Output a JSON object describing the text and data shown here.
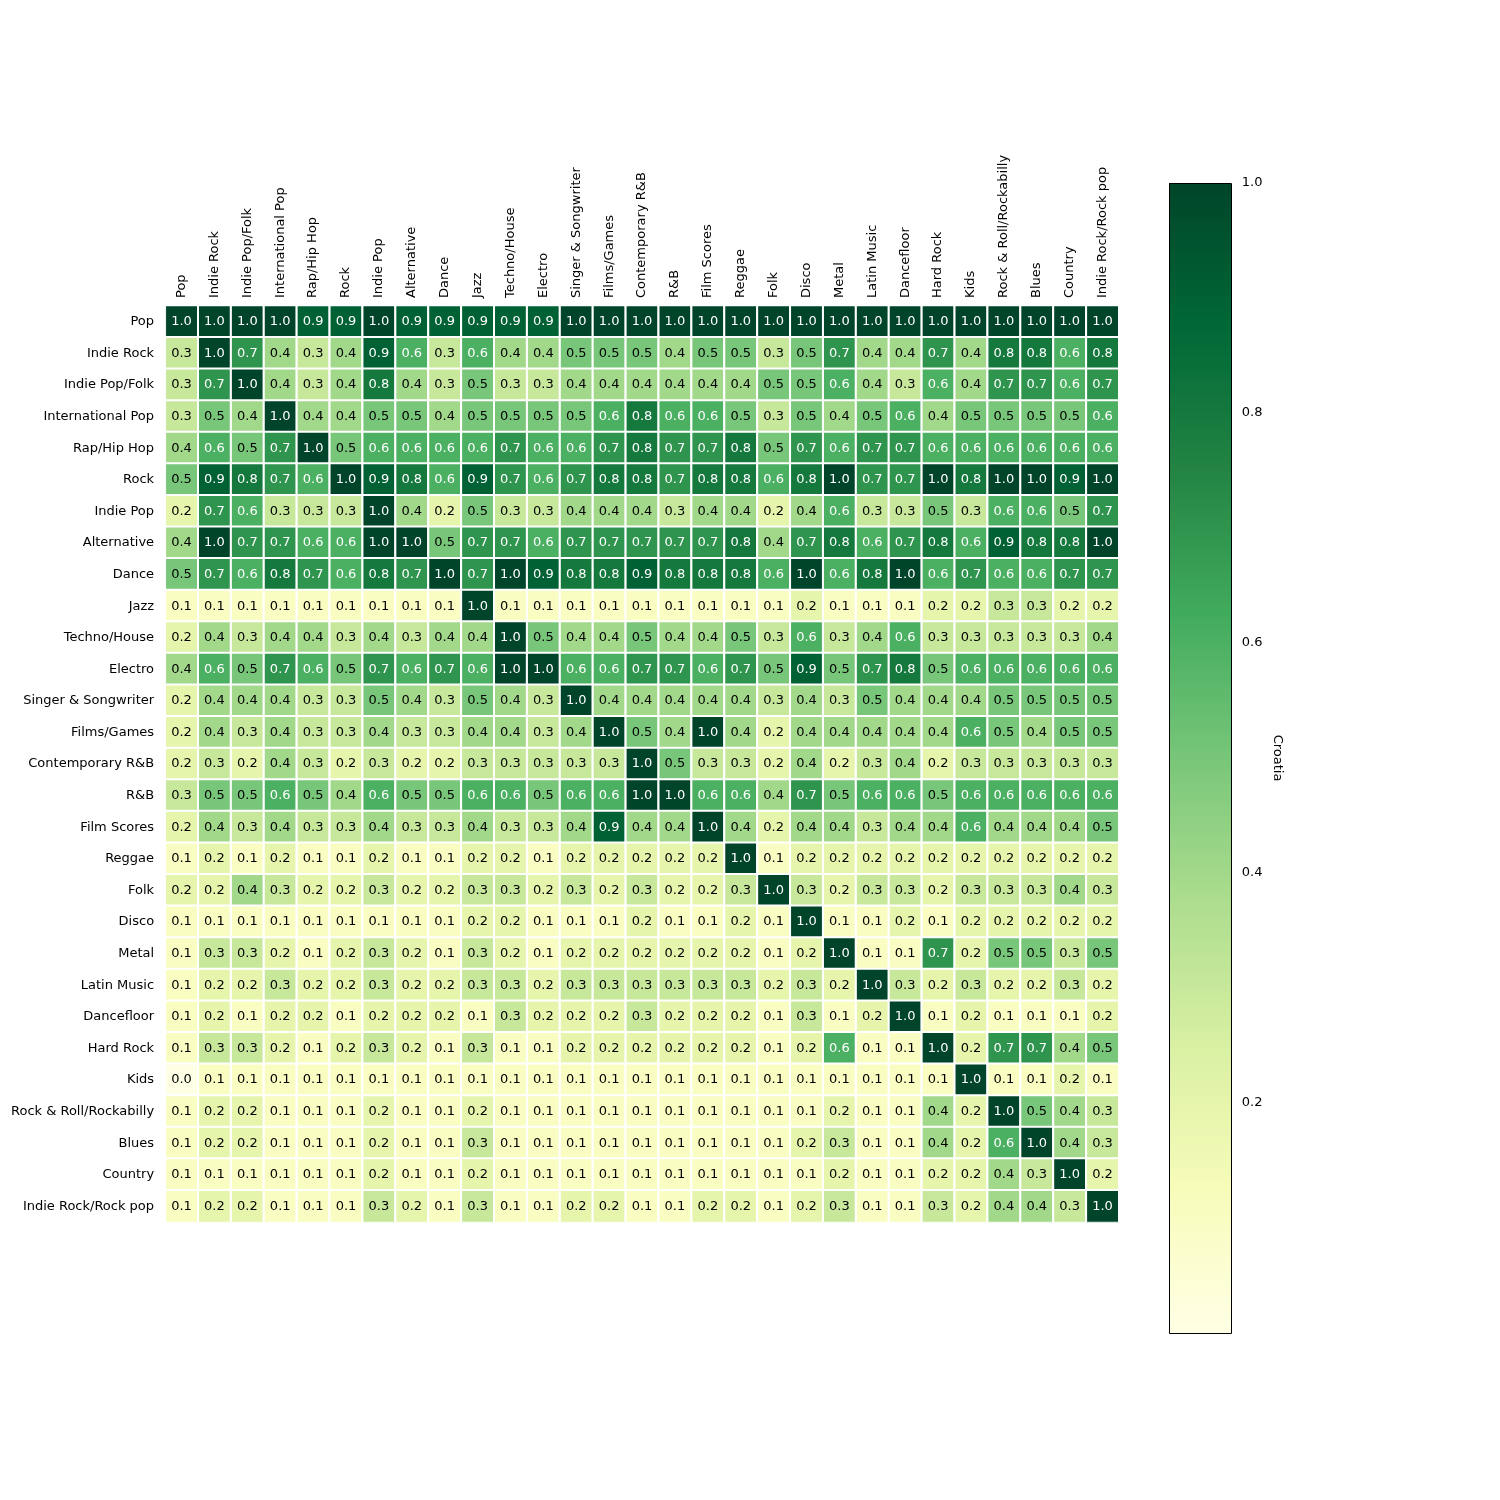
{
  "chart_data": {
    "type": "heatmap",
    "clabel": "Croatia",
    "clim": [
      0.0,
      1.0
    ],
    "cticks": [
      0.2,
      0.4,
      0.6,
      0.8,
      {
        "value": 1,
        "label": "1.0"
      }
    ],
    "data_labels": true,
    "categories": [
      "Pop",
      "Indie Rock",
      "Indie Pop/Folk",
      "International Pop",
      "Rap/Hip Hop",
      "Rock",
      "Indie Pop",
      "Alternative",
      "Dance",
      "Jazz",
      "Techno/House",
      "Electro",
      "Singer & Songwriter",
      "Films/Games",
      "Contemporary R&B",
      "R&B",
      "Film Scores",
      "Reggae",
      "Folk",
      "Disco",
      "Metal",
      "Latin Music",
      "Dancefloor",
      "Hard Rock",
      "Kids",
      "Rock & Roll/Rockabilly",
      "Blues",
      "Country",
      "Indie Rock/Rock pop"
    ],
    "y_categories": [
      "Pop",
      "Indie Rock",
      "Indie Pop/Folk",
      "International Pop",
      "Rap/Hip Hop",
      "Rock",
      "Indie Pop",
      "Alternative",
      "Dance",
      "Jazz",
      "Techno/House",
      "Electro",
      "Singer & Songwriter",
      "Films/Games",
      "Contemporary R&B",
      "R&B",
      "Film Scores",
      "Reggae",
      "Folk",
      "Disco",
      "Metal",
      "Latin Music",
      "Dancefloor",
      "Hard Rock",
      "Kids",
      "Rock & Roll/Rockabilly",
      "Blues",
      "Country",
      "Indie Rock/Rock pop"
    ],
    "cells": [
      [
        1.0,
        1.0,
        1.0,
        1.0,
        0.9,
        0.9,
        1.0,
        0.9,
        0.9,
        0.9,
        0.9,
        0.9,
        1.0,
        1.0,
        1.0,
        1.0,
        1.0,
        1.0,
        1.0,
        1.0,
        1.0,
        1.0,
        1.0,
        1.0,
        1.0,
        1.0,
        1.0,
        1.0,
        1.0
      ],
      [
        0.3,
        1.0,
        0.7,
        0.4,
        0.3,
        0.4,
        0.9,
        0.6,
        0.3,
        0.6,
        0.4,
        0.4,
        0.5,
        0.5,
        0.5,
        0.4,
        0.5,
        0.5,
        0.3,
        0.5,
        0.7,
        0.4,
        0.4,
        0.7,
        0.4,
        0.8,
        0.8,
        0.6,
        0.8
      ],
      [
        0.3,
        0.7,
        1.0,
        0.4,
        0.3,
        0.4,
        0.8,
        0.4,
        0.3,
        0.5,
        0.3,
        0.3,
        0.4,
        0.4,
        0.4,
        0.4,
        0.4,
        0.4,
        0.5,
        0.5,
        0.6,
        0.4,
        0.3,
        0.6,
        0.4,
        0.7,
        0.7,
        0.6,
        0.7
      ],
      [
        0.3,
        0.5,
        0.4,
        1.0,
        0.4,
        0.4,
        0.5,
        0.5,
        0.4,
        0.5,
        0.5,
        0.5,
        0.5,
        0.6,
        0.8,
        0.6,
        0.6,
        0.5,
        0.3,
        0.5,
        0.4,
        0.5,
        0.6,
        0.4,
        0.5,
        0.5,
        0.5,
        0.5,
        0.6
      ],
      [
        0.4,
        0.6,
        0.5,
        0.7,
        1.0,
        0.5,
        0.6,
        0.6,
        0.6,
        0.6,
        0.7,
        0.6,
        0.6,
        0.7,
        0.8,
        0.7,
        0.7,
        0.8,
        0.5,
        0.7,
        0.6,
        0.7,
        0.7,
        0.6,
        0.6,
        0.6,
        0.6,
        0.6,
        0.6
      ],
      [
        0.5,
        0.9,
        0.8,
        0.7,
        0.6,
        1.0,
        0.9,
        0.8,
        0.6,
        0.9,
        0.7,
        0.6,
        0.7,
        0.8,
        0.8,
        0.7,
        0.8,
        0.8,
        0.6,
        0.8,
        1.0,
        0.7,
        0.7,
        1.0,
        0.8,
        1.0,
        1.0,
        0.9,
        1.0
      ],
      [
        0.2,
        0.7,
        0.6,
        0.3,
        0.3,
        0.3,
        1.0,
        0.4,
        0.2,
        0.5,
        0.3,
        0.3,
        0.4,
        0.4,
        0.4,
        0.3,
        0.4,
        0.4,
        0.2,
        0.4,
        0.6,
        0.3,
        0.3,
        0.5,
        0.3,
        0.6,
        0.6,
        0.5,
        0.7
      ],
      [
        0.4,
        1.0,
        0.7,
        0.7,
        0.6,
        0.6,
        1.0,
        1.0,
        0.5,
        0.7,
        0.7,
        0.6,
        0.7,
        0.7,
        0.7,
        0.7,
        0.7,
        0.8,
        0.4,
        0.7,
        0.8,
        0.6,
        0.7,
        0.8,
        0.6,
        0.9,
        0.8,
        0.8,
        1.0
      ],
      [
        0.5,
        0.7,
        0.6,
        0.8,
        0.7,
        0.6,
        0.8,
        0.7,
        1.0,
        0.7,
        1.0,
        0.9,
        0.8,
        0.8,
        0.9,
        0.8,
        0.8,
        0.8,
        0.6,
        1.0,
        0.6,
        0.8,
        1.0,
        0.6,
        0.7,
        0.6,
        0.6,
        0.7,
        0.7
      ],
      [
        0.1,
        0.1,
        0.1,
        0.1,
        0.1,
        0.1,
        0.1,
        0.1,
        0.1,
        1.0,
        0.1,
        0.1,
        0.1,
        0.1,
        0.1,
        0.1,
        0.1,
        0.1,
        0.1,
        0.2,
        0.1,
        0.1,
        0.1,
        0.2,
        0.2,
        0.3,
        0.3,
        0.2,
        0.2
      ],
      [
        0.2,
        0.4,
        0.3,
        0.4,
        0.4,
        0.3,
        0.4,
        0.3,
        0.4,
        0.4,
        1.0,
        0.5,
        0.4,
        0.4,
        0.5,
        0.4,
        0.4,
        0.5,
        0.3,
        0.6,
        0.3,
        0.4,
        0.6,
        0.3,
        0.3,
        0.3,
        0.3,
        0.3,
        0.4
      ],
      [
        0.4,
        0.6,
        0.5,
        0.7,
        0.6,
        0.5,
        0.7,
        0.6,
        0.7,
        0.6,
        1.0,
        1.0,
        0.6,
        0.6,
        0.7,
        0.7,
        0.6,
        0.7,
        0.5,
        0.9,
        0.5,
        0.7,
        0.8,
        0.5,
        0.6,
        0.6,
        0.6,
        0.6,
        0.6
      ],
      [
        0.2,
        0.4,
        0.4,
        0.4,
        0.3,
        0.3,
        0.5,
        0.4,
        0.3,
        0.5,
        0.4,
        0.3,
        1.0,
        0.4,
        0.4,
        0.4,
        0.4,
        0.4,
        0.3,
        0.4,
        0.3,
        0.5,
        0.4,
        0.4,
        0.4,
        0.5,
        0.5,
        0.5,
        0.5
      ],
      [
        0.2,
        0.4,
        0.3,
        0.4,
        0.3,
        0.3,
        0.4,
        0.3,
        0.3,
        0.4,
        0.4,
        0.3,
        0.4,
        1.0,
        0.5,
        0.4,
        1.0,
        0.4,
        0.2,
        0.4,
        0.4,
        0.4,
        0.4,
        0.4,
        0.6,
        0.5,
        0.4,
        0.5,
        0.5
      ],
      [
        0.2,
        0.3,
        0.2,
        0.4,
        0.3,
        0.2,
        0.3,
        0.2,
        0.2,
        0.3,
        0.3,
        0.3,
        0.3,
        0.3,
        1.0,
        0.5,
        0.3,
        0.3,
        0.2,
        0.4,
        0.2,
        0.3,
        0.4,
        0.2,
        0.3,
        0.3,
        0.3,
        0.3,
        0.3
      ],
      [
        0.3,
        0.5,
        0.5,
        0.6,
        0.5,
        0.4,
        0.6,
        0.5,
        0.5,
        0.6,
        0.6,
        0.5,
        0.6,
        0.6,
        1.0,
        1.0,
        0.6,
        0.6,
        0.4,
        0.7,
        0.5,
        0.6,
        0.6,
        0.5,
        0.6,
        0.6,
        0.6,
        0.6,
        0.6
      ],
      [
        0.2,
        0.4,
        0.3,
        0.4,
        0.3,
        0.3,
        0.4,
        0.3,
        0.3,
        0.4,
        0.3,
        0.3,
        0.4,
        0.9,
        0.4,
        0.4,
        1.0,
        0.4,
        0.2,
        0.4,
        0.4,
        0.3,
        0.4,
        0.4,
        0.6,
        0.4,
        0.4,
        0.4,
        0.5
      ],
      [
        0.1,
        0.2,
        0.1,
        0.2,
        0.1,
        0.1,
        0.2,
        0.1,
        0.1,
        0.2,
        0.2,
        0.1,
        0.2,
        0.2,
        0.2,
        0.2,
        0.2,
        1.0,
        0.1,
        0.2,
        0.2,
        0.2,
        0.2,
        0.2,
        0.2,
        0.2,
        0.2,
        0.2,
        0.2
      ],
      [
        0.2,
        0.2,
        0.4,
        0.3,
        0.2,
        0.2,
        0.3,
        0.2,
        0.2,
        0.3,
        0.3,
        0.2,
        0.3,
        0.2,
        0.3,
        0.2,
        0.2,
        0.3,
        1.0,
        0.3,
        0.2,
        0.3,
        0.3,
        0.2,
        0.3,
        0.3,
        0.3,
        0.4,
        0.3
      ],
      [
        0.1,
        0.1,
        0.1,
        0.1,
        0.1,
        0.1,
        0.1,
        0.1,
        0.1,
        0.2,
        0.2,
        0.1,
        0.1,
        0.1,
        0.2,
        0.1,
        0.1,
        0.2,
        0.1,
        1.0,
        0.1,
        0.1,
        0.2,
        0.1,
        0.2,
        0.2,
        0.2,
        0.2,
        0.2
      ],
      [
        0.1,
        0.3,
        0.3,
        0.2,
        0.1,
        0.2,
        0.3,
        0.2,
        0.1,
        0.3,
        0.2,
        0.1,
        0.2,
        0.2,
        0.2,
        0.2,
        0.2,
        0.2,
        0.1,
        0.2,
        1.0,
        0.1,
        0.1,
        0.7,
        0.2,
        0.5,
        0.5,
        0.3,
        0.5
      ],
      [
        0.1,
        0.2,
        0.2,
        0.3,
        0.2,
        0.2,
        0.3,
        0.2,
        0.2,
        0.3,
        0.3,
        0.2,
        0.3,
        0.3,
        0.3,
        0.3,
        0.3,
        0.3,
        0.2,
        0.3,
        0.2,
        1.0,
        0.3,
        0.2,
        0.3,
        0.2,
        0.2,
        0.3,
        0.2
      ],
      [
        0.1,
        0.2,
        0.1,
        0.2,
        0.2,
        0.1,
        0.2,
        0.2,
        0.2,
        0.1,
        0.3,
        0.2,
        0.2,
        0.2,
        0.3,
        0.2,
        0.2,
        0.2,
        0.1,
        0.3,
        0.1,
        0.2,
        1.0,
        0.1,
        0.2,
        0.1,
        0.1,
        0.1,
        0.2
      ],
      [
        0.1,
        0.3,
        0.3,
        0.2,
        0.1,
        0.2,
        0.3,
        0.2,
        0.1,
        0.3,
        0.1,
        0.1,
        0.2,
        0.2,
        0.2,
        0.2,
        0.2,
        0.2,
        0.1,
        0.2,
        0.6,
        0.1,
        0.1,
        1.0,
        0.2,
        0.7,
        0.7,
        0.4,
        0.5
      ],
      [
        0.0,
        0.1,
        0.1,
        0.1,
        0.1,
        0.1,
        0.1,
        0.1,
        0.1,
        0.1,
        0.1,
        0.1,
        0.1,
        0.1,
        0.1,
        0.1,
        0.1,
        0.1,
        0.1,
        0.1,
        0.1,
        0.1,
        0.1,
        0.1,
        1.0,
        0.1,
        0.1,
        0.2,
        0.1
      ],
      [
        0.1,
        0.2,
        0.2,
        0.1,
        0.1,
        0.1,
        0.2,
        0.1,
        0.1,
        0.2,
        0.1,
        0.1,
        0.1,
        0.1,
        0.1,
        0.1,
        0.1,
        0.1,
        0.1,
        0.1,
        0.2,
        0.1,
        0.1,
        0.4,
        0.2,
        1.0,
        0.5,
        0.4,
        0.3
      ],
      [
        0.1,
        0.2,
        0.2,
        0.1,
        0.1,
        0.1,
        0.2,
        0.1,
        0.1,
        0.3,
        0.1,
        0.1,
        0.1,
        0.1,
        0.1,
        0.1,
        0.1,
        0.1,
        0.1,
        0.2,
        0.3,
        0.1,
        0.1,
        0.4,
        0.2,
        0.6,
        1.0,
        0.4,
        0.3
      ],
      [
        0.1,
        0.1,
        0.1,
        0.1,
        0.1,
        0.1,
        0.2,
        0.1,
        0.1,
        0.2,
        0.1,
        0.1,
        0.1,
        0.1,
        0.1,
        0.1,
        0.1,
        0.1,
        0.1,
        0.1,
        0.2,
        0.1,
        0.1,
        0.2,
        0.2,
        0.4,
        0.3,
        1.0,
        0.2
      ],
      [
        0.1,
        0.2,
        0.2,
        0.1,
        0.1,
        0.1,
        0.3,
        0.2,
        0.1,
        0.3,
        0.1,
        0.1,
        0.2,
        0.2,
        0.1,
        0.1,
        0.2,
        0.2,
        0.1,
        0.2,
        0.3,
        0.1,
        0.1,
        0.3,
        0.2,
        0.4,
        0.4,
        0.3,
        1.0
      ]
    ],
    "cell_labels": [
      [
        "1.0",
        "1.0",
        "1.0",
        "1.0",
        "0.9",
        "0.9",
        "1.0",
        "0.9",
        "0.9",
        "0.9",
        "0.9",
        "0.9",
        "1.0",
        "1.0",
        "1.0",
        "1.0",
        "1.0",
        "1.0",
        "1.0",
        "1.0",
        "1.0",
        "1.0",
        "1.0",
        "1.0",
        "1.0",
        "1.0",
        "1.0",
        "1.0",
        "1.0"
      ],
      [
        "0.3",
        "1.0",
        "0.7",
        "0.4",
        "0.3",
        "0.4",
        "0.9",
        "0.6",
        "0.3",
        "0.6",
        "0.4",
        "0.4",
        "0.5",
        "0.5",
        "0.5",
        "0.4",
        "0.5",
        "0.5",
        "0.3",
        "0.5",
        "0.7",
        "0.4",
        "0.4",
        "0.7",
        "0.4",
        "0.8",
        "0.8",
        "0.6",
        "0.8"
      ],
      [
        "0.3",
        "0.7",
        "1.0",
        "0.4",
        "0.3",
        "0.4",
        "0.8",
        "0.4",
        "0.3",
        "0.5",
        "0.3",
        "0.3",
        "0.4",
        "0.4",
        "0.4",
        "0.4",
        "0.4",
        "0.4",
        "0.5",
        "0.5",
        "0.6",
        "0.4",
        "0.3",
        "0.6",
        "0.4",
        "0.7",
        "0.7",
        "0.6",
        "0.7"
      ],
      [
        "0.3",
        "0.5",
        "0.4",
        "1.0",
        "0.4",
        "0.4",
        "0.5",
        "0.5",
        "0.4",
        "0.5",
        "0.5",
        "0.5",
        "0.5",
        "0.6",
        "0.8",
        "0.6",
        "0.6",
        "0.5",
        "0.3",
        "0.5",
        "0.4",
        "0.5",
        "0.6",
        "0.4",
        "0.5",
        "0.5",
        "0.5",
        "0.5",
        "0.6"
      ],
      [
        "0.4",
        "0.6",
        "0.5",
        "0.7",
        "1.0",
        "0.5",
        "0.6",
        "0.6",
        "0.6",
        "0.6",
        "0.7",
        "0.6",
        "0.6",
        "0.7",
        "0.8",
        "0.7",
        "0.7",
        "0.8",
        "0.5",
        "0.7",
        "0.6",
        "0.7",
        "0.7",
        "0.6",
        "0.6",
        "0.6",
        "0.6",
        "0.6",
        "0.6"
      ],
      [
        "0.5",
        "0.9",
        "0.8",
        "0.7",
        "0.6",
        "1.0",
        "0.9",
        "0.8",
        "0.6",
        "0.9",
        "0.7",
        "0.6",
        "0.7",
        "0.8",
        "0.8",
        "0.7",
        "0.8",
        "0.8",
        "0.6",
        "0.8",
        "1.0",
        "0.7",
        "0.7",
        "1.0",
        "0.8",
        "1.0",
        "1.0",
        "0.9",
        "1.0"
      ],
      [
        "0.2",
        "0.7",
        "0.6",
        "0.3",
        "0.3",
        "0.3",
        "1.0",
        "0.4",
        "0.2",
        "0.5",
        "0.3",
        "0.3",
        "0.4",
        "0.4",
        "0.4",
        "0.3",
        "0.4",
        "0.4",
        "0.2",
        "0.4",
        "0.6",
        "0.3",
        "0.3",
        "0.5",
        "0.3",
        "0.6",
        "0.6",
        "0.5",
        "0.7"
      ],
      [
        "0.4",
        "1.0",
        "0.7",
        "0.7",
        "0.6",
        "0.6",
        "1.0",
        "1.0",
        "0.5",
        "0.7",
        "0.7",
        "0.6",
        "0.7",
        "0.7",
        "0.7",
        "0.7",
        "0.7",
        "0.8",
        "0.4",
        "0.7",
        "0.8",
        "0.6",
        "0.7",
        "0.8",
        "0.6",
        "0.9",
        "0.8",
        "0.8",
        "1.0"
      ],
      [
        "0.5",
        "0.7",
        "0.6",
        "0.8",
        "0.7",
        "0.6",
        "0.8",
        "0.7",
        "1.0",
        "0.7",
        "1.0",
        "0.9",
        "0.8",
        "0.8",
        "0.9",
        "0.8",
        "0.8",
        "0.8",
        "0.6",
        "1.0",
        "0.6",
        "0.8",
        "1.0",
        "0.6",
        "0.7",
        "0.6",
        "0.6",
        "0.7",
        "0.7"
      ],
      [
        "0.1",
        "0.1",
        "0.1",
        "0.1",
        "0.1",
        "0.1",
        "0.1",
        "0.1",
        "0.1",
        "1.0",
        "0.1",
        "0.1",
        "0.1",
        "0.1",
        "0.1",
        "0.1",
        "0.1",
        "0.1",
        "0.1",
        "0.2",
        "0.1",
        "0.1",
        "0.1",
        "0.2",
        "0.2",
        "0.3",
        "0.3",
        "0.2",
        "0.2"
      ],
      [
        "0.2",
        "0.4",
        "0.3",
        "0.4",
        "0.4",
        "0.3",
        "0.4",
        "0.3",
        "0.4",
        "0.4",
        "1.0",
        "0.5",
        "0.4",
        "0.4",
        "0.5",
        "0.4",
        "0.4",
        "0.5",
        "0.3",
        "0.6",
        "0.3",
        "0.4",
        "0.6",
        "0.3",
        "0.3",
        "0.3",
        "0.3",
        "0.3",
        "0.4"
      ],
      [
        "0.4",
        "0.6",
        "0.5",
        "0.7",
        "0.6",
        "0.5",
        "0.7",
        "0.6",
        "0.7",
        "0.6",
        "1.0",
        "1.0",
        "0.6",
        "0.6",
        "0.7",
        "0.7",
        "0.6",
        "0.7",
        "0.5",
        "0.9",
        "0.5",
        "0.7",
        "0.8",
        "0.5",
        "0.6",
        "0.6",
        "0.6",
        "0.6",
        "0.6"
      ],
      [
        "0.2",
        "0.4",
        "0.4",
        "0.4",
        "0.3",
        "0.3",
        "0.5",
        "0.4",
        "0.3",
        "0.5",
        "0.4",
        "0.3",
        "1.0",
        "0.4",
        "0.4",
        "0.4",
        "0.4",
        "0.4",
        "0.3",
        "0.4",
        "0.3",
        "0.5",
        "0.4",
        "0.4",
        "0.4",
        "0.5",
        "0.5",
        "0.5",
        "0.5"
      ],
      [
        "0.2",
        "0.4",
        "0.3",
        "0.4",
        "0.3",
        "0.3",
        "0.4",
        "0.3",
        "0.3",
        "0.4",
        "0.4",
        "0.3",
        "0.4",
        "1.0",
        "0.5",
        "0.4",
        "1.0",
        "0.4",
        "0.2",
        "0.4",
        "0.4",
        "0.4",
        "0.4",
        "0.4",
        "0.6",
        "0.5",
        "0.4",
        "0.5",
        "0.5"
      ],
      [
        "0.2",
        "0.3",
        "0.2",
        "0.4",
        "0.3",
        "0.2",
        "0.3",
        "0.2",
        "0.2",
        "0.3",
        "0.3",
        "0.3",
        "0.3",
        "0.3",
        "1.0",
        "0.5",
        "0.3",
        "0.3",
        "0.2",
        "0.4",
        "0.2",
        "0.3",
        "0.4",
        "0.2",
        "0.3",
        "0.3",
        "0.3",
        "0.3",
        "0.3"
      ],
      [
        "0.3",
        "0.5",
        "0.5",
        "0.6",
        "0.5",
        "0.4",
        "0.6",
        "0.5",
        "0.5",
        "0.6",
        "0.6",
        "0.5",
        "0.6",
        "0.6",
        "1.0",
        "1.0",
        "0.6",
        "0.6",
        "0.4",
        "0.7",
        "0.5",
        "0.6",
        "0.6",
        "0.5",
        "0.6",
        "0.6",
        "0.6",
        "0.6",
        "0.6"
      ],
      [
        "0.2",
        "0.4",
        "0.3",
        "0.4",
        "0.3",
        "0.3",
        "0.4",
        "0.3",
        "0.3",
        "0.4",
        "0.3",
        "0.3",
        "0.4",
        "0.9",
        "0.4",
        "0.4",
        "1.0",
        "0.4",
        "0.2",
        "0.4",
        "0.4",
        "0.3",
        "0.4",
        "0.4",
        "0.6",
        "0.4",
        "0.4",
        "0.4",
        "0.5"
      ],
      [
        "0.1",
        "0.2",
        "0.1",
        "0.2",
        "0.1",
        "0.1",
        "0.2",
        "0.1",
        "0.1",
        "0.2",
        "0.2",
        "0.1",
        "0.2",
        "0.2",
        "0.2",
        "0.2",
        "0.2",
        "1.0",
        "0.1",
        "0.2",
        "0.2",
        "0.2",
        "0.2",
        "0.2",
        "0.2",
        "0.2",
        "0.2",
        "0.2",
        "0.2"
      ],
      [
        "0.2",
        "0.2",
        "0.4",
        "0.3",
        "0.2",
        "0.2",
        "0.3",
        "0.2",
        "0.2",
        "0.3",
        "0.3",
        "0.2",
        "0.3",
        "0.2",
        "0.3",
        "0.2",
        "0.2",
        "0.3",
        "1.0",
        "0.3",
        "0.2",
        "0.3",
        "0.3",
        "0.2",
        "0.3",
        "0.3",
        "0.3",
        "0.4",
        "0.3"
      ],
      [
        "0.1",
        "0.1",
        "0.1",
        "0.1",
        "0.1",
        "0.1",
        "0.1",
        "0.1",
        "0.1",
        "0.2",
        "0.2",
        "0.1",
        "0.1",
        "0.1",
        "0.2",
        "0.1",
        "0.1",
        "0.2",
        "0.1",
        "1.0",
        "0.1",
        "0.1",
        "0.2",
        "0.1",
        "0.2",
        "0.2",
        "0.2",
        "0.2",
        "0.2"
      ],
      [
        "0.1",
        "0.3",
        "0.3",
        "0.2",
        "0.1",
        "0.2",
        "0.3",
        "0.2",
        "0.1",
        "0.3",
        "0.2",
        "0.1",
        "0.2",
        "0.2",
        "0.2",
        "0.2",
        "0.2",
        "0.2",
        "0.1",
        "0.2",
        "1.0",
        "0.1",
        "0.1",
        "0.7",
        "0.2",
        "0.5",
        "0.5",
        "0.3",
        "0.5"
      ],
      [
        "0.1",
        "0.2",
        "0.2",
        "0.3",
        "0.2",
        "0.2",
        "0.3",
        "0.2",
        "0.2",
        "0.3",
        "0.3",
        "0.2",
        "0.3",
        "0.3",
        "0.3",
        "0.3",
        "0.3",
        "0.3",
        "0.2",
        "0.3",
        "0.2",
        "1.0",
        "0.3",
        "0.2",
        "0.3",
        "0.2",
        "0.2",
        "0.3",
        "0.2"
      ],
      [
        "0.1",
        "0.2",
        "0.1",
        "0.2",
        "0.2",
        "0.1",
        "0.2",
        "0.2",
        "0.2",
        "0.1",
        "0.3",
        "0.2",
        "0.2",
        "0.2",
        "0.3",
        "0.2",
        "0.2",
        "0.2",
        "0.1",
        "0.3",
        "0.1",
        "0.2",
        "1.0",
        "0.1",
        "0.2",
        "0.1",
        "0.1",
        "0.1",
        "0.2"
      ],
      [
        "0.1",
        "0.3",
        "0.3",
        "0.2",
        "0.1",
        "0.2",
        "0.3",
        "0.2",
        "0.1",
        "0.3",
        "0.1",
        "0.1",
        "0.2",
        "0.2",
        "0.2",
        "0.2",
        "0.2",
        "0.2",
        "0.1",
        "0.2",
        "0.6",
        "0.1",
        "0.1",
        "1.0",
        "0.2",
        "0.7",
        "0.7",
        "0.4",
        "0.5"
      ],
      [
        "0.0",
        "0.1",
        "0.1",
        "0.1",
        "0.1",
        "0.1",
        "0.1",
        "0.1",
        "0.1",
        "0.1",
        "0.1",
        "0.1",
        "0.1",
        "0.1",
        "0.1",
        "0.1",
        "0.1",
        "0.1",
        "0.1",
        "0.1",
        "0.1",
        "0.1",
        "0.1",
        "0.1",
        "1.0",
        "0.1",
        "0.1",
        "0.2",
        "0.1"
      ],
      [
        "0.1",
        "0.2",
        "0.2",
        "0.1",
        "0.1",
        "0.1",
        "0.2",
        "0.1",
        "0.1",
        "0.2",
        "0.1",
        "0.1",
        "0.1",
        "0.1",
        "0.1",
        "0.1",
        "0.1",
        "0.1",
        "0.1",
        "0.1",
        "0.2",
        "0.1",
        "0.1",
        "0.4",
        "0.2",
        "1.0",
        "0.5",
        "0.4",
        "0.3"
      ],
      [
        "0.1",
        "0.2",
        "0.2",
        "0.1",
        "0.1",
        "0.1",
        "0.2",
        "0.1",
        "0.1",
        "0.3",
        "0.1",
        "0.1",
        "0.1",
        "0.1",
        "0.1",
        "0.1",
        "0.1",
        "0.1",
        "0.1",
        "0.2",
        "0.3",
        "0.1",
        "0.1",
        "0.4",
        "0.2",
        "0.6",
        "1.0",
        "0.4",
        "0.3"
      ],
      [
        "0.1",
        "0.1",
        "0.1",
        "0.1",
        "0.1",
        "0.1",
        "0.2",
        "0.1",
        "0.1",
        "0.2",
        "0.1",
        "0.1",
        "0.1",
        "0.1",
        "0.1",
        "0.1",
        "0.1",
        "0.1",
        "0.1",
        "0.1",
        "0.2",
        "0.1",
        "0.1",
        "0.2",
        "0.2",
        "0.4",
        "0.3",
        "1.0",
        "0.2"
      ],
      [
        "0.1",
        "0.2",
        "0.2",
        "0.1",
        "0.1",
        "0.1",
        "0.3",
        "0.2",
        "0.1",
        "0.3",
        "0.1",
        "0.1",
        "0.2",
        "0.2",
        "0.1",
        "0.1",
        "0.2",
        "0.2",
        "0.1",
        "0.2",
        "0.3",
        "0.1",
        "0.1",
        "0.3",
        "0.2",
        "0.4",
        "0.4",
        "0.3",
        "1.0"
      ]
    ]
  }
}
